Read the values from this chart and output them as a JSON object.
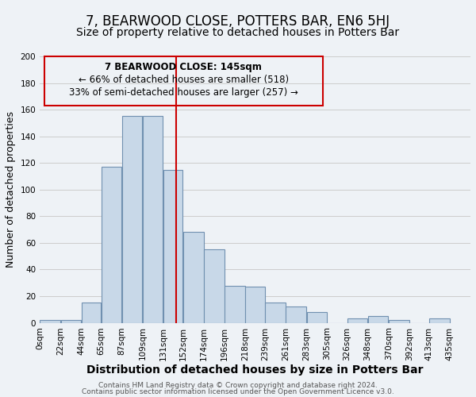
{
  "title": "7, BEARWOOD CLOSE, POTTERS BAR, EN6 5HJ",
  "subtitle": "Size of property relative to detached houses in Potters Bar",
  "xlabel": "Distribution of detached houses by size in Potters Bar",
  "ylabel": "Number of detached properties",
  "footer_line1": "Contains HM Land Registry data © Crown copyright and database right 2024.",
  "footer_line2": "Contains public sector information licensed under the Open Government Licence v3.0.",
  "annotation_line1": "7 BEARWOOD CLOSE: 145sqm",
  "annotation_line2": "← 66% of detached houses are smaller (518)",
  "annotation_line3": "33% of semi-detached houses are larger (257) →",
  "bar_left_edges": [
    0,
    22,
    44,
    65,
    87,
    109,
    131,
    152,
    174,
    196,
    218,
    239,
    261,
    283,
    305,
    326,
    348,
    370,
    392,
    413
  ],
  "bar_widths": [
    22,
    22,
    21,
    22,
    22,
    22,
    21,
    22,
    22,
    22,
    21,
    22,
    22,
    22,
    21,
    22,
    22,
    22,
    21,
    22
  ],
  "bar_heights": [
    2,
    2,
    15,
    117,
    155,
    155,
    115,
    68,
    55,
    28,
    27,
    15,
    12,
    8,
    0,
    3,
    5,
    2,
    0,
    3
  ],
  "bar_color": "#c8d8e8",
  "bar_edge_color": "#7090b0",
  "grid_color": "#cccccc",
  "background_color": "#eef2f6",
  "vline_x": 145,
  "vline_color": "#cc0000",
  "ylim": [
    0,
    200
  ],
  "xlim_max": 457,
  "tick_labels": [
    "0sqm",
    "22sqm",
    "44sqm",
    "65sqm",
    "87sqm",
    "109sqm",
    "131sqm",
    "152sqm",
    "174sqm",
    "196sqm",
    "218sqm",
    "239sqm",
    "261sqm",
    "283sqm",
    "305sqm",
    "326sqm",
    "348sqm",
    "370sqm",
    "392sqm",
    "413sqm",
    "435sqm"
  ],
  "annotation_box_edge_color": "#cc0000",
  "title_fontsize": 12,
  "subtitle_fontsize": 10,
  "xlabel_fontsize": 10,
  "ylabel_fontsize": 9,
  "tick_fontsize": 7.5,
  "annotation_fontsize": 8.5,
  "footer_fontsize": 6.5
}
